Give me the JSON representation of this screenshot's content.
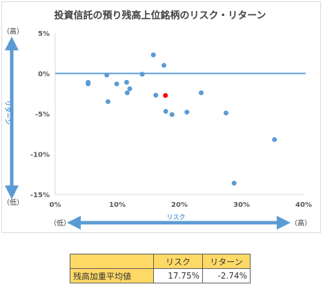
{
  "chart_data": {
    "type": "scatter",
    "title": "投資信託の預り残高上位銘柄のリスク・リターン",
    "xlabel": "リスク",
    "ylabel": "リターン",
    "x_axis_end_labels": {
      "low": "（低）",
      "high": "（高）"
    },
    "y_axis_end_labels": {
      "high": "（高）",
      "low": "（低）"
    },
    "xlim": [
      0,
      40
    ],
    "ylim": [
      -15,
      5
    ],
    "x_ticks": [
      "0%",
      "10%",
      "20%",
      "30%",
      "40%"
    ],
    "y_ticks": [
      "5%",
      "0%",
      "-5%",
      "-10%",
      "-15%"
    ],
    "grid": false,
    "colors": {
      "points": "#5b9bd5",
      "average_point": "#ff0000",
      "axes": "#5b9bd5"
    },
    "series": [
      {
        "points": [
          {
            "x": 5.3,
            "y": -1.1
          },
          {
            "x": 5.3,
            "y": -1.3
          },
          {
            "x": 8.3,
            "y": -0.2
          },
          {
            "x": 8.5,
            "y": -3.5
          },
          {
            "x": 9.9,
            "y": -1.3
          },
          {
            "x": 11.5,
            "y": -1.1
          },
          {
            "x": 11.6,
            "y": -2.4
          },
          {
            "x": 12.0,
            "y": -1.9
          },
          {
            "x": 14.0,
            "y": -0.1
          },
          {
            "x": 15.8,
            "y": 2.3
          },
          {
            "x": 16.2,
            "y": -2.7
          },
          {
            "x": 17.5,
            "y": 1.0
          },
          {
            "x": 17.8,
            "y": -4.7
          },
          {
            "x": 18.8,
            "y": -5.1
          },
          {
            "x": 21.2,
            "y": -4.8
          },
          {
            "x": 23.5,
            "y": -2.4
          },
          {
            "x": 27.5,
            "y": -4.9
          },
          {
            "x": 28.8,
            "y": -13.6
          },
          {
            "x": 35.3,
            "y": -8.2
          }
        ]
      },
      {
        "points": [
          {
            "x": 17.75,
            "y": -2.74
          }
        ]
      }
    ]
  },
  "summary_table": {
    "headers": [
      "",
      "リスク",
      "リターン"
    ],
    "row_label": "残高加重平均値",
    "risk": "17.75%",
    "return": "-2.74%"
  }
}
